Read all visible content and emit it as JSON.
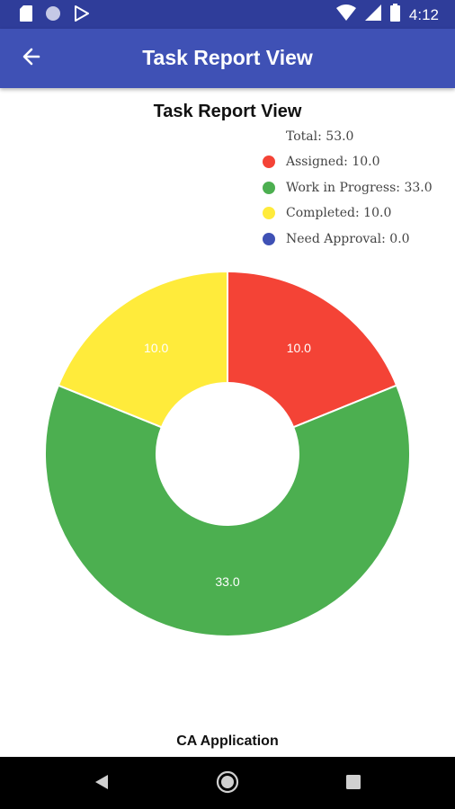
{
  "status_bar": {
    "time": "4:12",
    "icons_left": [
      "sd-card-icon",
      "circle-notification-icon",
      "play-store-icon"
    ],
    "icons_right": [
      "wifi-icon",
      "signal-icon",
      "battery-icon"
    ]
  },
  "app_bar": {
    "title": "Task Report View",
    "back_icon": "arrow-back-icon"
  },
  "chart_data": {
    "type": "pie",
    "title": "Task Report View",
    "total_label": "Total: 53.0",
    "slices": [
      {
        "label": "Assigned",
        "legend": "Assigned: 10.0",
        "value": 10.0,
        "value_label": "10.0",
        "color": "#f44336"
      },
      {
        "label": "Work in Progress",
        "legend": "Work in Progress: 33.0",
        "value": 33.0,
        "value_label": "33.0",
        "color": "#4caf50"
      },
      {
        "label": "Completed",
        "legend": "Completed: 10.0",
        "value": 10.0,
        "value_label": "10.0",
        "color": "#ffeb3b"
      },
      {
        "label": "Need Approval",
        "legend": "Need Approval: 0.0",
        "value": 0.0,
        "value_label": "0.0",
        "color": "#3f51b5"
      }
    ],
    "legend_position": "top-right",
    "donut": true
  },
  "footer": {
    "label": "CA Application"
  },
  "nav_bar": {
    "buttons": [
      "back-triangle-icon",
      "home-circle-icon",
      "recents-square-icon"
    ]
  }
}
